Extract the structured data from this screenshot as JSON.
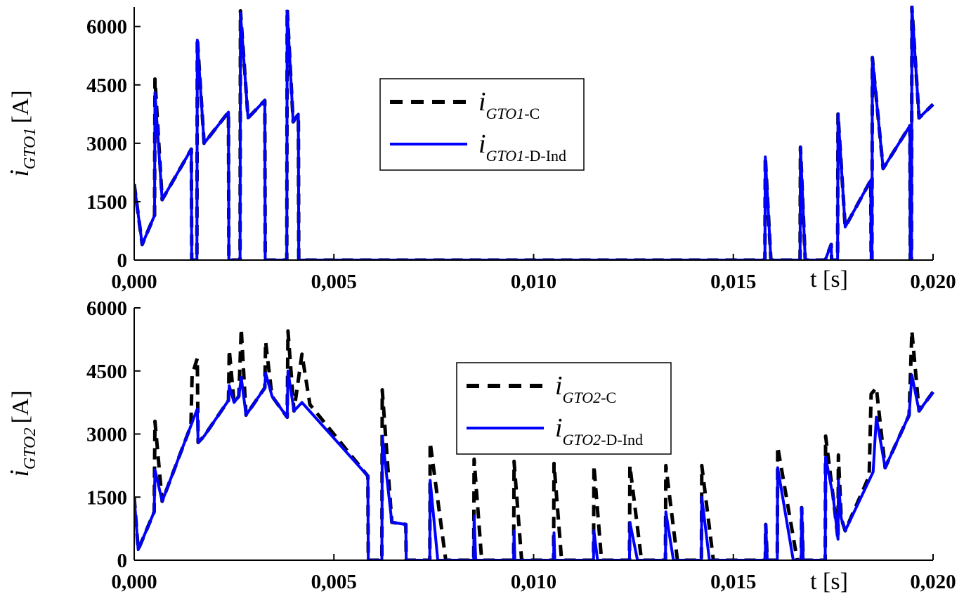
{
  "chart_data": [
    {
      "type": "line",
      "xlim": [
        0,
        0.02
      ],
      "ylim": [
        0,
        6500
      ],
      "xticks": [
        {
          "value": 0,
          "label": "0,000"
        },
        {
          "value": 0.005,
          "label": "0,005"
        },
        {
          "value": 0.01,
          "label": "0,010"
        },
        {
          "value": 0.015,
          "label": "0,015"
        },
        {
          "value": 0.02,
          "label": "0,020"
        }
      ],
      "yticks": [
        0,
        1500,
        3000,
        4500,
        6000
      ],
      "xlabel": "t [s]",
      "ylabel": {
        "symbol": "i",
        "subscript": "GTO1",
        "unit": "[A]"
      },
      "series": [
        {
          "name": "i",
          "subscript": "GTO1",
          "suffix": "-C",
          "color": "#000000",
          "style": "dashed",
          "x": [
            0,
            0.0002,
            0.00051,
            0.00052,
            0.0007,
            0.00143,
            0.00144,
            0.00157,
            0.00158,
            0.00175,
            0.00236,
            0.00237,
            0.00265,
            0.00266,
            0.00285,
            0.00327,
            0.00328,
            0.00382,
            0.00383,
            0.00398,
            0.00411,
            0.00412,
            0.01579,
            0.0158,
            0.01594,
            0.01667,
            0.01668,
            0.0168,
            0.0173,
            0.01745,
            0.01746,
            0.01761,
            0.01762,
            0.0178,
            0.01844,
            0.01845,
            0.01847,
            0.01848,
            0.01875,
            0.01942,
            0.01943,
            0.01946,
            0.01947,
            0.01965,
            0.02
          ],
          "values": [
            1950,
            400,
            1150,
            4650,
            1550,
            2850,
            0,
            0,
            5700,
            3000,
            3800,
            0,
            0,
            6400,
            3650,
            4100,
            0,
            0,
            6450,
            3550,
            3750,
            0,
            0,
            2650,
            0,
            0,
            2900,
            0,
            0,
            400,
            0,
            0,
            3750,
            850,
            2050,
            0,
            0,
            5200,
            2350,
            3450,
            0,
            0,
            6500,
            3650,
            4000
          ]
        },
        {
          "name": "i",
          "subscript": "GTO1",
          "suffix": "-D-Ind",
          "color": "#0000ff",
          "style": "solid",
          "x": [
            0,
            0.0002,
            0.00051,
            0.00052,
            0.0007,
            0.00143,
            0.00144,
            0.00157,
            0.00158,
            0.00175,
            0.00236,
            0.00237,
            0.00265,
            0.00266,
            0.00285,
            0.00327,
            0.00328,
            0.00382,
            0.00383,
            0.00398,
            0.00411,
            0.00412,
            0.01579,
            0.0158,
            0.01594,
            0.01667,
            0.01668,
            0.0168,
            0.0173,
            0.01745,
            0.01746,
            0.01761,
            0.01762,
            0.0178,
            0.01844,
            0.01845,
            0.01847,
            0.01848,
            0.01875,
            0.01942,
            0.01943,
            0.01946,
            0.01947,
            0.01965,
            0.02
          ],
          "values": [
            1950,
            400,
            1150,
            4300,
            1550,
            2850,
            0,
            0,
            5650,
            3000,
            3800,
            0,
            0,
            6350,
            3650,
            4100,
            0,
            0,
            6400,
            3550,
            3750,
            0,
            0,
            2650,
            0,
            0,
            2900,
            0,
            0,
            400,
            0,
            0,
            3750,
            850,
            2050,
            0,
            0,
            5200,
            2350,
            3450,
            0,
            0,
            6500,
            3650,
            4000
          ]
        }
      ]
    },
    {
      "type": "line",
      "xlim": [
        0,
        0.02
      ],
      "ylim": [
        0,
        6000
      ],
      "xticks": [
        {
          "value": 0,
          "label": "0,000"
        },
        {
          "value": 0.005,
          "label": "0,005"
        },
        {
          "value": 0.01,
          "label": "0,010"
        },
        {
          "value": 0.015,
          "label": "0,015"
        },
        {
          "value": 0.02,
          "label": "0,020"
        }
      ],
      "yticks": [
        0,
        1500,
        3000,
        4500,
        6000
      ],
      "xlabel": "t [s]",
      "ylabel": {
        "symbol": "i",
        "subscript": "GTO2",
        "unit": "[A]"
      },
      "series": [
        {
          "name": "i",
          "subscript": "GTO2",
          "suffix": "-C",
          "color": "#000000",
          "style": "dashed",
          "x": [
            0,
            0.0001,
            0.0005,
            0.00052,
            0.0007,
            0.00142,
            0.00145,
            0.00158,
            0.0016,
            0.00175,
            0.00236,
            0.00238,
            0.0025,
            0.00262,
            0.00268,
            0.0028,
            0.00327,
            0.00329,
            0.00345,
            0.00383,
            0.00385,
            0.004,
            0.0042,
            0.0044,
            0.00585,
            0.00586,
            0.0062,
            0.00621,
            0.00645,
            0.0068,
            0.00681,
            0.0074,
            0.00741,
            0.0078,
            0.0085,
            0.00851,
            0.0087,
            0.0095,
            0.00951,
            0.0097,
            0.0105,
            0.01051,
            0.0107,
            0.0115,
            0.01151,
            0.0117,
            0.0124,
            0.01241,
            0.0127,
            0.0133,
            0.01331,
            0.0136,
            0.0142,
            0.01421,
            0.0145,
            0.0158,
            0.01581,
            0.01585,
            0.0161,
            0.01611,
            0.0166,
            0.0167,
            0.01671,
            0.01675,
            0.0173,
            0.01731,
            0.0175,
            0.01762,
            0.01763,
            0.0177,
            0.0178,
            0.0184,
            0.01845,
            0.01858,
            0.0188,
            0.0194,
            0.01947,
            0.01965,
            0.02
          ],
          "values": [
            1500,
            250,
            1150,
            3300,
            1400,
            3200,
            4400,
            4800,
            2800,
            2950,
            3800,
            5000,
            3750,
            3900,
            5500,
            3450,
            4100,
            5200,
            3900,
            3400,
            5450,
            3550,
            4900,
            3700,
            2000,
            0,
            0,
            4050,
            900,
            850,
            0,
            0,
            2800,
            0,
            0,
            2400,
            0,
            0,
            2350,
            0,
            0,
            2300,
            0,
            0,
            2250,
            0,
            0,
            2250,
            0,
            0,
            2250,
            0,
            0,
            2250,
            0,
            0,
            850,
            0,
            0,
            2700,
            0,
            0,
            1250,
            0,
            0,
            2950,
            1500,
            500,
            2500,
            1000,
            700,
            2000,
            3950,
            4100,
            2200,
            3450,
            5450,
            3550,
            4000
          ]
        },
        {
          "name": "i",
          "subscript": "GTO2",
          "suffix": "-D-Ind",
          "color": "#0000ff",
          "style": "solid",
          "x": [
            0,
            0.0001,
            0.0005,
            0.00052,
            0.0007,
            0.00142,
            0.00158,
            0.0016,
            0.00175,
            0.00236,
            0.00238,
            0.0025,
            0.00262,
            0.00268,
            0.0028,
            0.00327,
            0.00329,
            0.00345,
            0.00383,
            0.00385,
            0.004,
            0.0042,
            0.00585,
            0.00586,
            0.0062,
            0.00621,
            0.00645,
            0.0068,
            0.00681,
            0.0074,
            0.00741,
            0.0076,
            0.0085,
            0.00851,
            0.00855,
            0.0095,
            0.00951,
            0.00953,
            0.0105,
            0.01051,
            0.01053,
            0.0115,
            0.01151,
            0.0116,
            0.0124,
            0.01241,
            0.0126,
            0.0133,
            0.01331,
            0.0135,
            0.0142,
            0.01421,
            0.0144,
            0.0158,
            0.01581,
            0.01585,
            0.0161,
            0.01611,
            0.0165,
            0.0167,
            0.01671,
            0.01675,
            0.0173,
            0.01731,
            0.0175,
            0.01762,
            0.01763,
            0.0177,
            0.0178,
            0.0185,
            0.01858,
            0.0188,
            0.0194,
            0.01947,
            0.01965,
            0.02
          ],
          "values": [
            1500,
            250,
            1150,
            2150,
            1400,
            3200,
            3600,
            2800,
            2950,
            3800,
            4150,
            3750,
            3900,
            4350,
            3450,
            4100,
            4450,
            3900,
            3400,
            4500,
            3550,
            3750,
            2000,
            0,
            0,
            2950,
            900,
            850,
            0,
            0,
            1900,
            0,
            0,
            1050,
            0,
            0,
            700,
            0,
            0,
            650,
            0,
            0,
            700,
            0,
            0,
            900,
            0,
            0,
            1150,
            0,
            0,
            1500,
            0,
            0,
            850,
            0,
            0,
            2200,
            0,
            0,
            1250,
            0,
            0,
            2450,
            1500,
            500,
            1900,
            1000,
            700,
            2100,
            3400,
            2200,
            3450,
            4400,
            3550,
            4000
          ]
        }
      ]
    }
  ]
}
